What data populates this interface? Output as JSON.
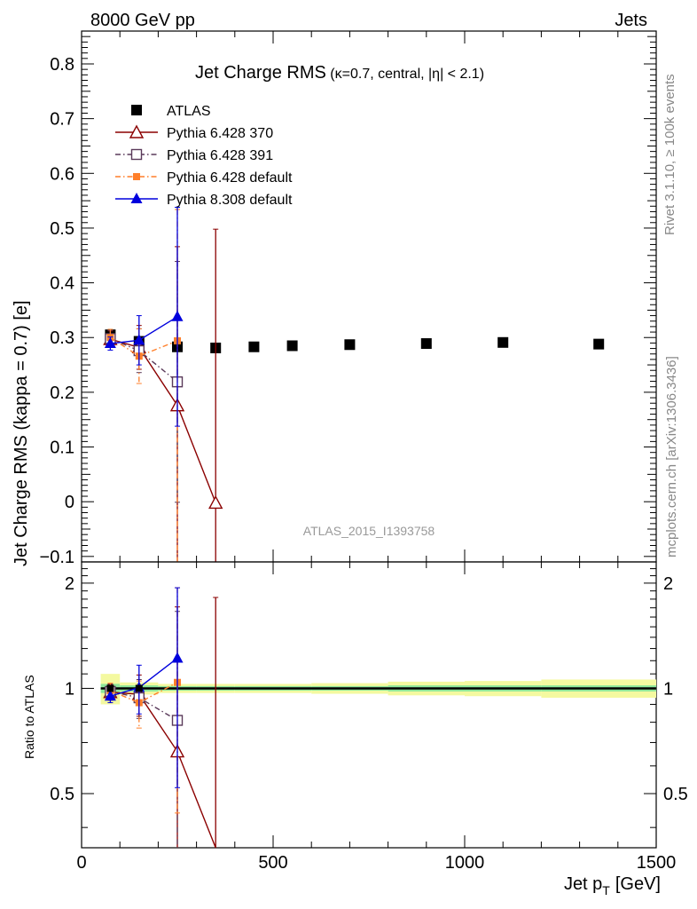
{
  "header": {
    "left": "8000 GeV pp",
    "right": "Jets"
  },
  "side_labels": {
    "rivet": "Rivet 3.1.10, ≥ 100k events",
    "mcplots": "mcplots.cern.ch [arXiv:1306.3436]"
  },
  "chart_data": {
    "type": "scatter",
    "title": "Jet Charge RMS",
    "subtitle": "(κ=0.7, central, |η| < 2.1)",
    "watermark": "ATLAS_2015_I1393758",
    "xlabel": "Jet p_T [GeV]",
    "xlabel_main": "Jet p",
    "xlabel_sub": "T",
    "xlabel_unit": "[GeV]",
    "ylabel": "Jet Charge RMS (kappa = 0.7) [e]",
    "ratio_ylabel": "Ratio to ATLAS",
    "xlim": [
      0,
      1500
    ],
    "ylim": [
      -0.11,
      0.86
    ],
    "ratio_ylim": [
      0.35,
      2.3
    ],
    "ratio_scale": "log",
    "x_ticks": [
      0,
      500,
      1000,
      1500
    ],
    "x_tick_labels": [
      "0",
      "500",
      "1000",
      "1500"
    ],
    "y_ticks": [
      -0.1,
      0,
      0.1,
      0.2,
      0.3,
      0.4,
      0.5,
      0.6,
      0.7,
      0.8
    ],
    "y_tick_labels": [
      "−0.1",
      "0",
      "0.1",
      "0.2",
      "0.3",
      "0.4",
      "0.5",
      "0.6",
      "0.7",
      "0.8"
    ],
    "ratio_ticks": [
      0.5,
      1,
      2
    ],
    "ratio_tick_labels": [
      "0.5",
      "1",
      "2"
    ],
    "legend_position": "top-left",
    "series": [
      {
        "name": "ATLAS",
        "color": "#000000",
        "marker": "square-filled",
        "line": "none",
        "x": [
          75,
          150,
          250,
          350,
          450,
          550,
          700,
          900,
          1100,
          1350
        ],
        "xerr": [
          25,
          50,
          50,
          50,
          50,
          50,
          100,
          100,
          100,
          150
        ],
        "y": [
          0.305,
          0.293,
          0.283,
          0.281,
          0.283,
          0.285,
          0.287,
          0.289,
          0.291,
          0.288
        ],
        "ratio_band_inner": [
          0.03,
          0.02,
          0.015,
          0.015,
          0.015,
          0.015,
          0.015,
          0.02,
          0.02,
          0.02
        ],
        "ratio_band_outer": [
          0.1,
          0.04,
          0.03,
          0.03,
          0.03,
          0.03,
          0.035,
          0.045,
          0.05,
          0.06
        ]
      },
      {
        "name": "Pythia 6.428 370",
        "color": "#8b0000",
        "marker": "triangle-open",
        "line": "solid",
        "x": [
          75,
          150,
          250,
          350
        ],
        "y": [
          0.297,
          0.282,
          0.176,
          -0.002
        ],
        "yerr_low": [
          0.015,
          0.04,
          0.29,
          0.12
        ],
        "yerr_high": [
          0.015,
          0.04,
          0.29,
          0.5
        ],
        "ratio": [
          0.975,
          0.962,
          0.66,
          0.0
        ],
        "ratio_err_low": [
          0.05,
          0.13,
          0.5,
          0.0
        ],
        "ratio_err_high": [
          0.05,
          0.13,
          1.05,
          1.82
        ]
      },
      {
        "name": "Pythia 6.428 391",
        "color": "#5a3a5a",
        "marker": "square-open",
        "line": "dash-dot",
        "x": [
          75,
          150,
          250
        ],
        "y": [
          0.298,
          0.276,
          0.219
        ],
        "yerr_low": [
          0.015,
          0.04,
          0.22
        ],
        "yerr_high": [
          0.015,
          0.04,
          0.22
        ],
        "ratio": [
          0.98,
          0.94,
          0.81
        ],
        "ratio_err_low": [
          0.05,
          0.12,
          0.7
        ],
        "ratio_err_high": [
          0.05,
          0.12,
          0.85
        ]
      },
      {
        "name": "Pythia 6.428 default",
        "color": "#ff7f2a",
        "marker": "square-small",
        "line": "dash-dot",
        "x": [
          75,
          150,
          250
        ],
        "y": [
          0.3,
          0.266,
          0.294
        ],
        "yerr_low": [
          0.015,
          0.05,
          0.42
        ],
        "yerr_high": [
          0.015,
          0.05,
          0.24
        ],
        "ratio": [
          0.985,
          0.91,
          1.04
        ],
        "ratio_err_low": [
          0.05,
          0.14,
          0.6
        ],
        "ratio_err_high": [
          0.05,
          0.14,
          0.9
        ]
      },
      {
        "name": "Pythia 8.308 default",
        "color": "#0000dd",
        "marker": "triangle-filled",
        "line": "solid",
        "x": [
          75,
          150,
          250
        ],
        "y": [
          0.289,
          0.295,
          0.338
        ],
        "yerr_low": [
          0.012,
          0.045,
          0.2
        ],
        "yerr_high": [
          0.012,
          0.045,
          0.2
        ],
        "ratio": [
          0.95,
          1.005,
          1.22
        ],
        "ratio_err_low": [
          0.04,
          0.16,
          0.7
        ],
        "ratio_err_high": [
          0.04,
          0.16,
          0.72
        ]
      }
    ]
  }
}
